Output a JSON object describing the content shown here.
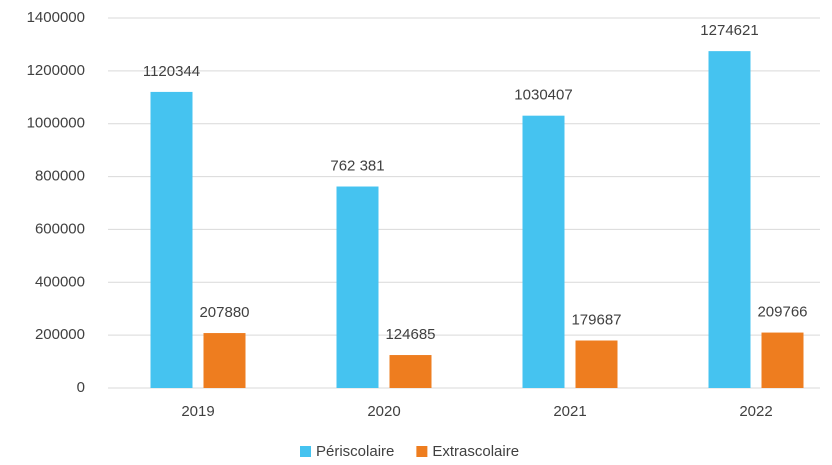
{
  "chart_data": {
    "type": "bar",
    "categories": [
      "2019",
      "2020",
      "2021",
      "2022"
    ],
    "series": [
      {
        "name": "Périscolaire",
        "color": "#45c3f0",
        "values": [
          1120344,
          762381,
          1030407,
          1274621
        ],
        "value_labels": [
          "1120344",
          "762 381",
          "1030407",
          "1274621"
        ]
      },
      {
        "name": "Extrascolaire",
        "color": "#ee7d1f",
        "values": [
          207880,
          124685,
          179687,
          209766
        ]
      }
    ],
    "ylim": [
      0,
      1400000
    ],
    "yticks": [
      0,
      200000,
      400000,
      600000,
      800000,
      1000000,
      1200000,
      1400000
    ],
    "grid": true,
    "legend": "bottom"
  }
}
